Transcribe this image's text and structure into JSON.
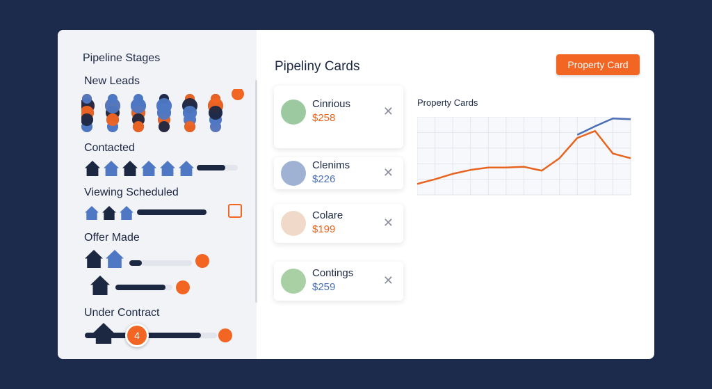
{
  "sidebar": {
    "title": "Pipeline Stages",
    "stages": [
      {
        "label": "New Leads",
        "progress": []
      },
      {
        "label": "Contacted",
        "progress": [
          70
        ]
      },
      {
        "label": "Viewing Scheduled",
        "progress": [
          100
        ]
      },
      {
        "label": "Offer Made",
        "progress": [
          20,
          88
        ]
      },
      {
        "label": "Under Contract",
        "progress": [
          88
        ],
        "badge": "4"
      }
    ]
  },
  "header": {
    "title": "Pipeliny Cards",
    "button": "Property Card"
  },
  "cards": [
    {
      "name": "Cinrious",
      "price": "$258",
      "color": "#e8641e"
    },
    {
      "name": "Clenims",
      "price": "$226",
      "color": "#4a6fb5"
    },
    {
      "name": "Colare",
      "price": "$199",
      "color": "#e8641e"
    },
    {
      "name": "Contings",
      "price": "$259",
      "color": "#4a6fb5"
    }
  ],
  "chart": {
    "type": "line",
    "title": "Property Cards",
    "ylim": [
      0,
      100
    ],
    "grid": true,
    "series": [
      {
        "color": "#e8641e",
        "values": [
          14,
          20,
          27,
          32,
          35,
          35,
          36,
          31,
          47,
          73,
          82,
          53,
          47
        ]
      },
      {
        "color": "#4a6fb5",
        "values": [
          null,
          null,
          null,
          null,
          null,
          null,
          null,
          null,
          null,
          77,
          88,
          98,
          97
        ]
      }
    ]
  }
}
